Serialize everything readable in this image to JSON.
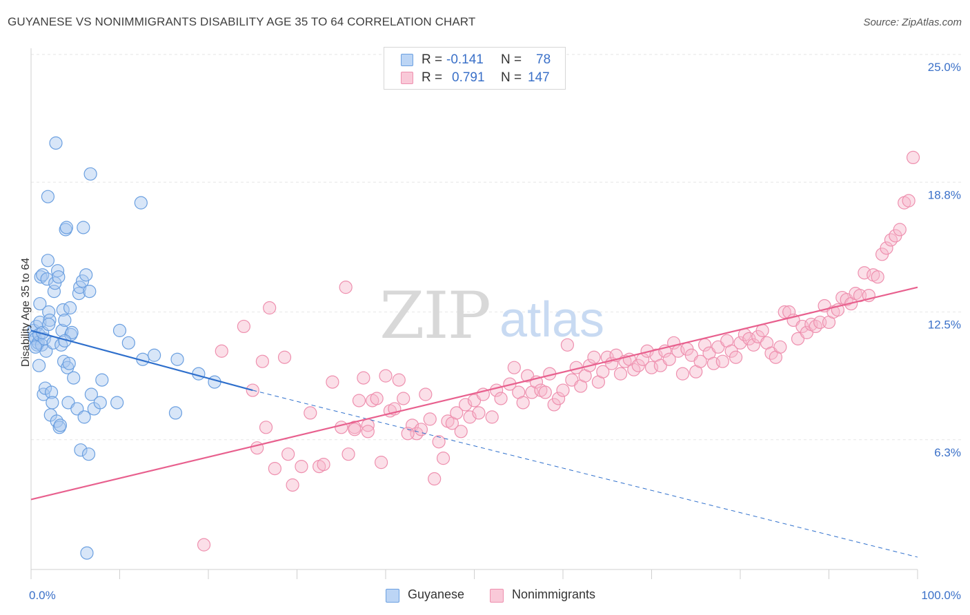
{
  "title": "GUYANESE VS NONIMMIGRANTS DISABILITY AGE 35 TO 64 CORRELATION CHART",
  "source": "Source: ZipAtlas.com",
  "watermark": {
    "zip": "ZIP",
    "atlas": "atlas"
  },
  "legend_top": {
    "rows": [
      {
        "r_label": "R =",
        "r_value": "-0.141",
        "n_label": "N =",
        "n_value": "78"
      },
      {
        "r_label": "R =",
        "r_value": "0.791",
        "n_label": "N =",
        "n_value": "147"
      }
    ]
  },
  "colors": {
    "blue_fill": "#a8c8f0",
    "blue_stroke": "#6a9fe0",
    "blue_line": "#2e6fcc",
    "pink_fill": "#f6b8cb",
    "pink_stroke": "#ee8fae",
    "pink_line": "#e8608e",
    "grid": "#e6e6e6",
    "tick_label": "#3a70c8"
  },
  "chart_data": {
    "type": "scatter",
    "title": "GUYANESE VS NONIMMIGRANTS DISABILITY AGE 35 TO 64 CORRELATION CHART",
    "xlabel": "",
    "ylabel": "Disability Age 35 to 64",
    "xlim": [
      0,
      100
    ],
    "ylim": [
      0,
      26
    ],
    "x_tick_labels": [
      "0.0%",
      "100.0%"
    ],
    "y_ticks": [
      6.3,
      12.5,
      18.8,
      25.0
    ],
    "y_tick_labels": [
      "6.3%",
      "12.5%",
      "18.8%",
      "25.0%"
    ],
    "grid": true,
    "legend": "top-center",
    "series": [
      {
        "name": "Guyanese",
        "color": "#a8c8f0",
        "r": -0.141,
        "n": 78,
        "trend": {
          "x": [
            0,
            25
          ],
          "y": [
            11.6,
            8.7
          ],
          "dashed_to": [
            100,
            0.6
          ]
        },
        "points": [
          [
            0.3,
            11.6
          ],
          [
            0.4,
            11.3
          ],
          [
            0.5,
            11.2
          ],
          [
            0.6,
            11.8
          ],
          [
            0.7,
            10.9
          ],
          [
            0.8,
            11.0
          ],
          [
            0.9,
            11.4
          ],
          [
            0.9,
            9.9
          ],
          [
            1.0,
            12.0
          ],
          [
            1.0,
            12.9
          ],
          [
            1.1,
            14.2
          ],
          [
            1.2,
            10.9
          ],
          [
            1.3,
            14.3
          ],
          [
            1.4,
            8.5
          ],
          [
            1.5,
            11.2
          ],
          [
            1.6,
            8.8
          ],
          [
            1.7,
            10.6
          ],
          [
            1.8,
            14.1
          ],
          [
            1.9,
            15.0
          ],
          [
            1.9,
            18.1
          ],
          [
            2.0,
            12.5
          ],
          [
            2.1,
            12.1
          ],
          [
            2.2,
            7.5
          ],
          [
            2.3,
            8.6
          ],
          [
            2.4,
            8.1
          ],
          [
            2.5,
            11.0
          ],
          [
            2.6,
            13.5
          ],
          [
            2.7,
            13.9
          ],
          [
            2.8,
            20.7
          ],
          [
            2.9,
            7.2
          ],
          [
            3.0,
            14.5
          ],
          [
            3.1,
            14.2
          ],
          [
            3.2,
            6.9
          ],
          [
            3.3,
            7.0
          ],
          [
            3.4,
            10.9
          ],
          [
            3.5,
            11.6
          ],
          [
            3.6,
            12.6
          ],
          [
            3.7,
            10.1
          ],
          [
            3.8,
            12.1
          ],
          [
            3.9,
            16.5
          ],
          [
            4.0,
            16.6
          ],
          [
            4.1,
            9.8
          ],
          [
            4.2,
            8.1
          ],
          [
            4.3,
            10.0
          ],
          [
            4.4,
            12.7
          ],
          [
            4.5,
            11.4
          ],
          [
            4.6,
            11.5
          ],
          [
            5.2,
            7.8
          ],
          [
            5.4,
            13.4
          ],
          [
            5.5,
            13.7
          ],
          [
            5.6,
            5.8
          ],
          [
            5.8,
            14.0
          ],
          [
            5.9,
            16.6
          ],
          [
            6.0,
            7.4
          ],
          [
            6.2,
            14.3
          ],
          [
            6.3,
            0.8
          ],
          [
            6.5,
            5.6
          ],
          [
            6.6,
            13.5
          ],
          [
            6.7,
            19.2
          ],
          [
            6.8,
            8.5
          ],
          [
            7.1,
            7.8
          ],
          [
            7.8,
            8.1
          ],
          [
            8.0,
            9.2
          ],
          [
            9.7,
            8.1
          ],
          [
            12.4,
            17.8
          ],
          [
            12.6,
            10.2
          ],
          [
            13.9,
            10.4
          ],
          [
            16.3,
            7.6
          ],
          [
            16.5,
            10.2
          ],
          [
            18.9,
            9.5
          ],
          [
            20.7,
            9.1
          ],
          [
            10.0,
            11.6
          ],
          [
            11.0,
            11.0
          ],
          [
            1.3,
            11.5
          ],
          [
            0.5,
            10.8
          ],
          [
            2.0,
            11.9
          ],
          [
            3.8,
            11.1
          ],
          [
            4.8,
            9.3
          ]
        ]
      },
      {
        "name": "Nonimmigrants",
        "color": "#f6b8cb",
        "r": 0.791,
        "n": 147,
        "trend": {
          "x": [
            0,
            100
          ],
          "y": [
            3.4,
            13.7
          ]
        },
        "points": [
          [
            19.5,
            1.2
          ],
          [
            21.5,
            10.6
          ],
          [
            24.0,
            11.8
          ],
          [
            25.0,
            8.7
          ],
          [
            25.5,
            5.9
          ],
          [
            26.1,
            10.1
          ],
          [
            26.5,
            6.9
          ],
          [
            26.9,
            12.7
          ],
          [
            27.5,
            4.9
          ],
          [
            28.6,
            10.3
          ],
          [
            29.0,
            5.6
          ],
          [
            29.5,
            4.1
          ],
          [
            30.5,
            5.0
          ],
          [
            31.5,
            7.6
          ],
          [
            32.5,
            5.0
          ],
          [
            33.0,
            5.1
          ],
          [
            34.0,
            9.1
          ],
          [
            35.0,
            6.9
          ],
          [
            35.5,
            13.7
          ],
          [
            35.8,
            5.6
          ],
          [
            36.5,
            6.9
          ],
          [
            37.0,
            8.2
          ],
          [
            37.5,
            9.3
          ],
          [
            38.0,
            7.0
          ],
          [
            38.5,
            8.2
          ],
          [
            39.0,
            8.3
          ],
          [
            39.5,
            5.2
          ],
          [
            40.0,
            9.4
          ],
          [
            40.5,
            7.7
          ],
          [
            41.0,
            7.8
          ],
          [
            41.5,
            9.2
          ],
          [
            42.0,
            8.3
          ],
          [
            43.0,
            7.0
          ],
          [
            43.5,
            6.6
          ],
          [
            44.0,
            6.8
          ],
          [
            44.5,
            8.5
          ],
          [
            45.0,
            7.3
          ],
          [
            45.5,
            4.4
          ],
          [
            46.0,
            6.2
          ],
          [
            46.5,
            5.4
          ],
          [
            47.0,
            7.2
          ],
          [
            47.5,
            7.1
          ],
          [
            48.0,
            7.6
          ],
          [
            48.5,
            6.7
          ],
          [
            49.0,
            8.0
          ],
          [
            49.5,
            7.4
          ],
          [
            50.0,
            8.2
          ],
          [
            50.5,
            7.6
          ],
          [
            51.0,
            8.5
          ],
          [
            52.0,
            7.4
          ],
          [
            52.5,
            8.7
          ],
          [
            53.0,
            8.3
          ],
          [
            54.0,
            9.0
          ],
          [
            54.5,
            9.8
          ],
          [
            55.0,
            8.6
          ],
          [
            55.5,
            8.1
          ],
          [
            56.0,
            9.4
          ],
          [
            56.5,
            8.6
          ],
          [
            57.0,
            9.1
          ],
          [
            57.5,
            8.7
          ],
          [
            58.0,
            8.6
          ],
          [
            58.5,
            9.5
          ],
          [
            59.0,
            8.0
          ],
          [
            59.5,
            8.3
          ],
          [
            60.0,
            8.7
          ],
          [
            60.5,
            10.9
          ],
          [
            61.0,
            9.2
          ],
          [
            61.5,
            9.8
          ],
          [
            62.0,
            8.9
          ],
          [
            62.5,
            9.4
          ],
          [
            63.0,
            9.9
          ],
          [
            63.5,
            10.3
          ],
          [
            64.0,
            9.1
          ],
          [
            64.5,
            9.6
          ],
          [
            65.0,
            10.3
          ],
          [
            65.5,
            10.0
          ],
          [
            66.0,
            10.4
          ],
          [
            66.5,
            9.5
          ],
          [
            67.0,
            10.1
          ],
          [
            67.5,
            10.2
          ],
          [
            68.0,
            9.7
          ],
          [
            68.5,
            9.9
          ],
          [
            69.0,
            10.2
          ],
          [
            69.5,
            10.6
          ],
          [
            70.0,
            9.8
          ],
          [
            70.5,
            10.4
          ],
          [
            71.0,
            9.9
          ],
          [
            71.5,
            10.6
          ],
          [
            72.0,
            10.2
          ],
          [
            72.5,
            11.0
          ],
          [
            73.0,
            10.6
          ],
          [
            73.5,
            9.5
          ],
          [
            74.0,
            10.7
          ],
          [
            74.5,
            10.4
          ],
          [
            75.0,
            9.6
          ],
          [
            75.5,
            10.1
          ],
          [
            76.0,
            10.9
          ],
          [
            76.5,
            10.5
          ],
          [
            77.0,
            10.0
          ],
          [
            77.5,
            10.8
          ],
          [
            78.0,
            10.1
          ],
          [
            78.5,
            11.1
          ],
          [
            79.0,
            10.6
          ],
          [
            79.5,
            10.3
          ],
          [
            80.0,
            11.0
          ],
          [
            80.5,
            11.4
          ],
          [
            81.0,
            11.2
          ],
          [
            81.5,
            10.9
          ],
          [
            82.0,
            11.3
          ],
          [
            82.5,
            11.6
          ],
          [
            83.0,
            11.0
          ],
          [
            83.5,
            10.5
          ],
          [
            84.0,
            10.3
          ],
          [
            84.5,
            10.8
          ],
          [
            85.0,
            12.5
          ],
          [
            85.5,
            12.5
          ],
          [
            86.0,
            12.1
          ],
          [
            86.5,
            11.2
          ],
          [
            87.0,
            11.8
          ],
          [
            87.5,
            11.5
          ],
          [
            88.0,
            11.9
          ],
          [
            88.5,
            11.8
          ],
          [
            89.0,
            12.0
          ],
          [
            89.5,
            12.8
          ],
          [
            90.0,
            12.0
          ],
          [
            90.5,
            12.5
          ],
          [
            91.0,
            12.6
          ],
          [
            91.5,
            13.2
          ],
          [
            92.0,
            13.1
          ],
          [
            92.5,
            12.9
          ],
          [
            93.0,
            13.4
          ],
          [
            93.5,
            13.3
          ],
          [
            94.0,
            14.4
          ],
          [
            94.5,
            13.3
          ],
          [
            95.0,
            14.3
          ],
          [
            95.5,
            14.2
          ],
          [
            96.0,
            15.3
          ],
          [
            96.5,
            15.6
          ],
          [
            97.0,
            16.0
          ],
          [
            97.5,
            16.2
          ],
          [
            98.0,
            16.5
          ],
          [
            98.5,
            17.8
          ],
          [
            99.0,
            17.9
          ],
          [
            99.5,
            20.0
          ],
          [
            36.5,
            6.8
          ],
          [
            38.0,
            6.7
          ],
          [
            42.5,
            6.6
          ]
        ]
      }
    ]
  },
  "bottom_legend": [
    "Guyanese",
    "Nonimmigrants"
  ]
}
